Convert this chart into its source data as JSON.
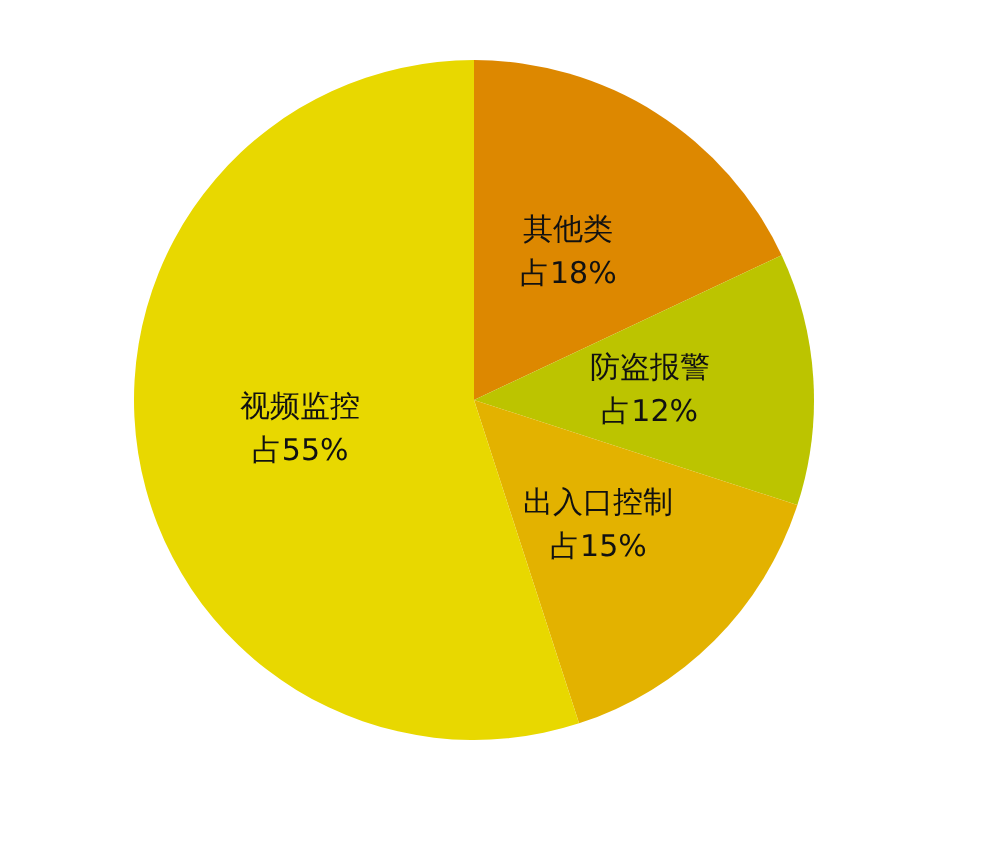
{
  "chart_data": {
    "type": "pie",
    "categories": [
      "其他类",
      "防盗报警",
      "出入口控制",
      "视频监控"
    ],
    "values": [
      18,
      12,
      15,
      55
    ],
    "value_labels": [
      "占18%",
      "占12%",
      "占15%",
      "占55%"
    ],
    "colors": [
      "#dd8800",
      "#bcc400",
      "#e3b200",
      "#e8d800"
    ],
    "legend": false
  }
}
